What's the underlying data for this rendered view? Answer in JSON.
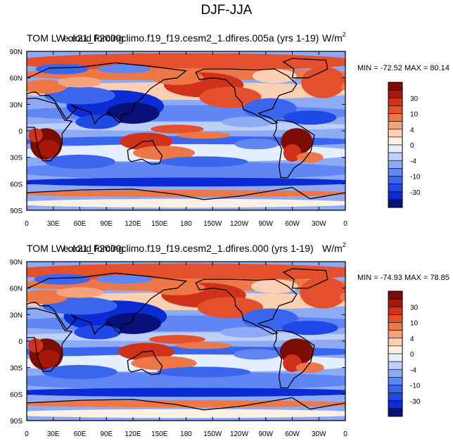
{
  "page_title": "DJF-JJA",
  "colors": {
    "levels": [
      "#08107a",
      "#0b2bd4",
      "#1f49e6",
      "#3a66ee",
      "#5f86f2",
      "#8eaaf5",
      "#bdd0fa",
      "#e6efff",
      "#fff1e3",
      "#fbcfb2",
      "#f5a37e",
      "#ee7748",
      "#e3502b",
      "#cf3218",
      "#a81809",
      "#7c0d05"
    ],
    "coast": "#000000"
  },
  "chart_data": [
    {
      "type": "heatmap",
      "id": "top",
      "title_left": "TOM LW cloud forcing",
      "title_case": "e.e21_F2000climo.f19_f19.cesm2_1.dfires.005a (yrs 1-19)",
      "units": "W/m",
      "units_exp": "2",
      "min_label": "MIN = -72.52",
      "max_label": "MAX =  80.14",
      "x_ticks": [
        "0",
        "30E",
        "60E",
        "90E",
        "120E",
        "150E",
        "180",
        "150W",
        "120W",
        "90W",
        "60W",
        "30W",
        "0"
      ],
      "y_ticks": [
        "90N",
        "60N",
        "30N",
        "0",
        "30S",
        "60S",
        "90S"
      ],
      "colorbar_labels": [
        "30",
        "10",
        "4",
        "0",
        "-4",
        "-10",
        "-30"
      ]
    },
    {
      "type": "heatmap",
      "id": "bottom",
      "title_left": "TOM LW cloud forcing",
      "title_case": "e.e21_F2000climo.f19_f19.cesm2_1.dfires.000 (yrs 1-19)",
      "units": "W/m",
      "units_exp": "2",
      "min_label": "MIN = -74.93",
      "max_label": "MAX =  78.85",
      "x_ticks": [
        "0",
        "30E",
        "60E",
        "90E",
        "120E",
        "150E",
        "180",
        "150W",
        "120W",
        "90W",
        "60W",
        "30W",
        "0"
      ],
      "y_ticks": [
        "90N",
        "60N",
        "30N",
        "0",
        "30S",
        "60S",
        "90S"
      ],
      "colorbar_labels": [
        "30",
        "10",
        "4",
        "0",
        "-4",
        "-10",
        "-30"
      ]
    }
  ]
}
